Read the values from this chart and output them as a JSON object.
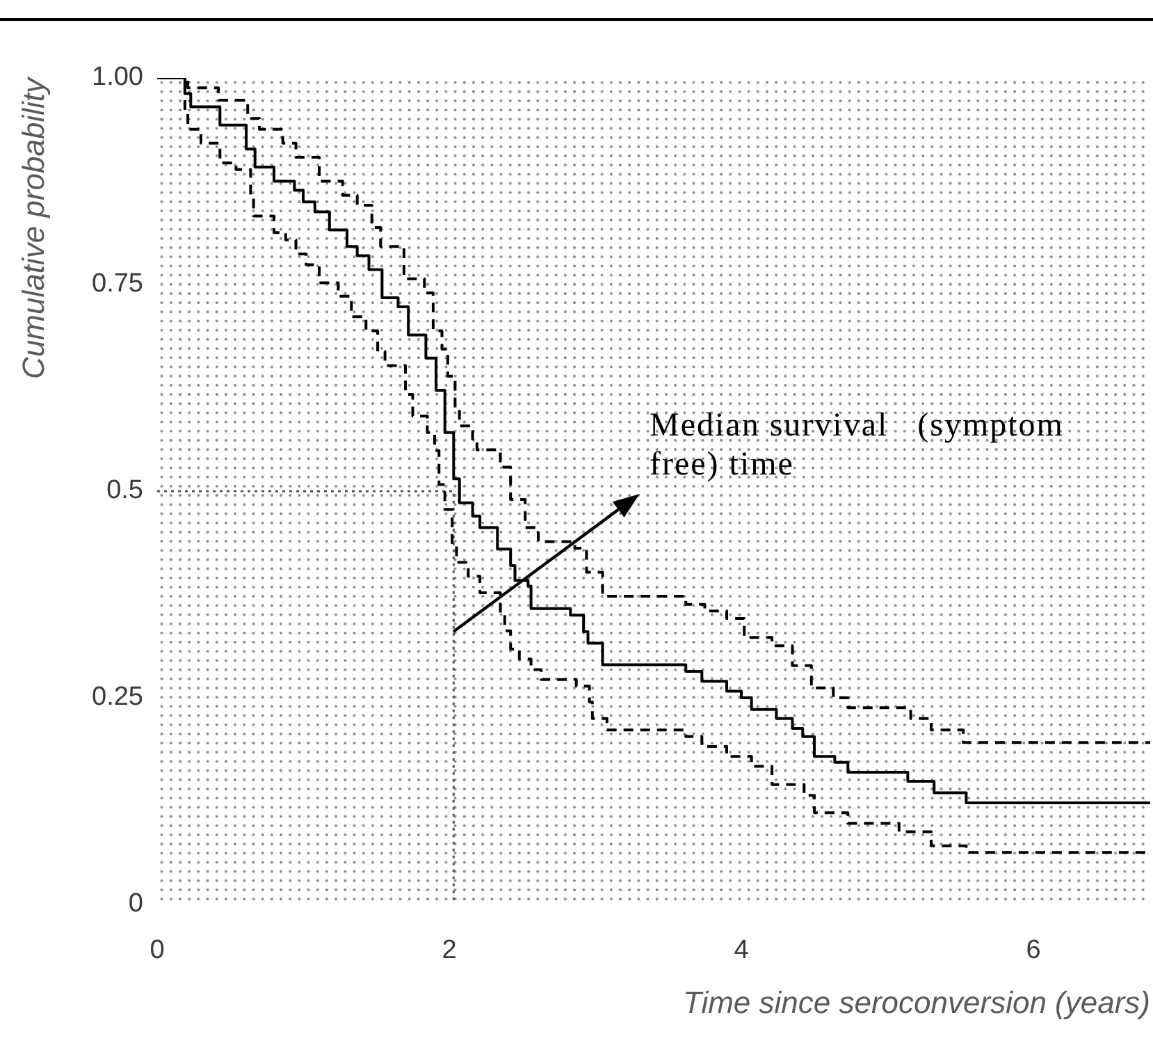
{
  "chart_data": {
    "type": "step",
    "xlabel": "Time since seroconversion (years)",
    "ylabel": "Cumulative probability",
    "annotations": [
      {
        "text": "Median survival   (symptom free) time",
        "x": 2.03,
        "y": 0.33
      }
    ],
    "xlim": [
      0,
      6.8
    ],
    "ylim": [
      0,
      1
    ],
    "xticks": [
      0,
      2,
      4,
      6
    ],
    "yticks": [
      0,
      0.25,
      0.5,
      0.75,
      {
        "value": 1,
        "label": "1.00"
      }
    ],
    "marker": "none",
    "series": [
      {
        "color": "#000000",
        "line_style": "solid",
        "x": [
          0,
          0.19,
          0.23,
          0.43,
          0.61,
          0.67,
          0.8,
          0.94,
          1.0,
          1.08,
          1.18,
          1.3,
          1.37,
          1.45,
          1.54,
          1.65,
          1.72,
          1.84,
          1.91,
          1.97,
          2.03,
          2.07,
          2.16,
          2.21,
          2.33,
          2.42,
          2.45,
          2.54,
          2.56,
          2.83,
          2.92,
          2.95,
          3.05,
          3.62,
          3.73,
          3.9,
          4.0,
          4.07,
          4.24,
          4.35,
          4.42,
          4.5,
          4.64,
          4.73,
          5.14,
          5.32,
          5.54,
          6.8
        ],
        "values": [
          1,
          0.981,
          0.965,
          0.943,
          0.914,
          0.892,
          0.875,
          0.864,
          0.85,
          0.838,
          0.816,
          0.796,
          0.785,
          0.768,
          0.734,
          0.723,
          0.689,
          0.661,
          0.622,
          0.571,
          0.515,
          0.486,
          0.47,
          0.456,
          0.43,
          0.41,
          0.392,
          0.385,
          0.358,
          0.35,
          0.33,
          0.316,
          0.29,
          0.282,
          0.27,
          0.258,
          0.25,
          0.236,
          0.225,
          0.213,
          0.203,
          0.179,
          0.172,
          0.16,
          0.149,
          0.135,
          0.123,
          0.123
        ]
      },
      {
        "color": "#000000",
        "line_style": "dashed",
        "x": [
          0,
          0.21,
          0.42,
          0.62,
          0.7,
          0.86,
          0.95,
          1.11,
          1.27,
          1.37,
          1.47,
          1.53,
          1.69,
          1.83,
          1.89,
          1.95,
          1.99,
          2.04,
          2.07,
          2.16,
          2.19,
          2.35,
          2.42,
          2.52,
          2.61,
          2.86,
          2.94,
          3.05,
          3.62,
          3.75,
          3.9,
          4.02,
          4.21,
          4.35,
          4.48,
          4.63,
          4.73,
          5.16,
          5.3,
          5.52,
          6.8
        ],
        "values": [
          1,
          0.988,
          0.973,
          0.951,
          0.938,
          0.921,
          0.904,
          0.875,
          0.858,
          0.846,
          0.819,
          0.796,
          0.757,
          0.74,
          0.694,
          0.672,
          0.639,
          0.6,
          0.579,
          0.56,
          0.55,
          0.529,
          0.49,
          0.456,
          0.439,
          0.431,
          0.402,
          0.373,
          0.363,
          0.355,
          0.346,
          0.323,
          0.313,
          0.289,
          0.262,
          0.25,
          0.238,
          0.225,
          0.211,
          0.196,
          0.196
        ]
      },
      {
        "color": "#000000",
        "line_style": "dashed",
        "x": [
          0,
          0.19,
          0.21,
          0.3,
          0.43,
          0.54,
          0.64,
          0.66,
          0.8,
          0.88,
          0.95,
          1.02,
          1.11,
          1.24,
          1.33,
          1.43,
          1.51,
          1.56,
          1.7,
          1.75,
          1.85,
          1.9,
          1.93,
          1.97,
          2.02,
          2.05,
          2.13,
          2.21,
          2.35,
          2.38,
          2.42,
          2.48,
          2.56,
          2.63,
          2.87,
          2.96,
          2.98,
          3.08,
          3.62,
          3.73,
          3.9,
          4.07,
          4.21,
          4.43,
          4.5,
          4.73,
          5.08,
          5.3,
          5.54,
          6.8
        ],
        "values": [
          1,
          0.959,
          0.938,
          0.921,
          0.897,
          0.889,
          0.858,
          0.833,
          0.813,
          0.804,
          0.787,
          0.774,
          0.752,
          0.736,
          0.711,
          0.694,
          0.669,
          0.652,
          0.617,
          0.591,
          0.571,
          0.549,
          0.508,
          0.478,
          0.436,
          0.414,
          0.397,
          0.377,
          0.351,
          0.331,
          0.309,
          0.297,
          0.284,
          0.272,
          0.264,
          0.245,
          0.225,
          0.211,
          0.203,
          0.191,
          0.179,
          0.167,
          0.145,
          0.132,
          0.111,
          0.098,
          0.088,
          0.071,
          0.063,
          0.063
        ]
      },
      {
        "type": "line",
        "color": "#555555",
        "line_style": "dotted",
        "x": [
          0,
          2.03,
          2.03
        ],
        "values": [
          0.5,
          0.5,
          0
        ]
      }
    ]
  }
}
